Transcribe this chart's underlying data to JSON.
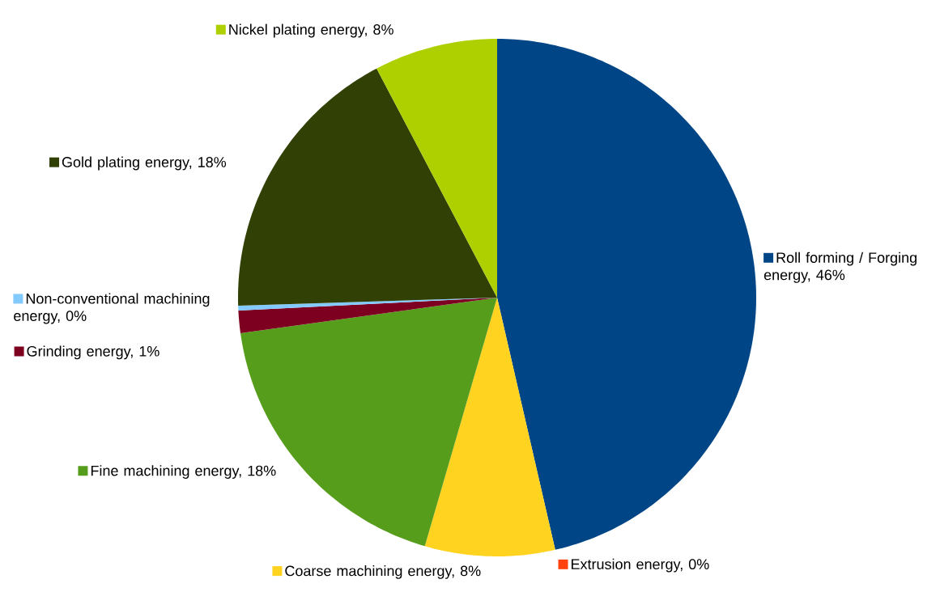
{
  "chart_data": {
    "type": "pie",
    "legend": "bottom left",
    "categories": [
      "Roll forming / Forging energy, 46%",
      "Extrusion energy, 0%",
      "Coarse machining energy, 8%",
      "Fine machining energy, 18%",
      "Grinding energy, 1%",
      "Non-conventional machining energy, 0%",
      "Gold plating energy, 18%",
      "Nickel plating energy, 8%"
    ],
    "values": [
      46.4,
      0,
      8.1,
      18.3,
      1.4,
      0.3,
      17.8,
      7.7
    ],
    "colors": [
      "#004586",
      "#ff420e",
      "#ffd320",
      "#579d1c",
      "#7e0021",
      "#83caff",
      "#314004",
      "#aecf00"
    ]
  }
}
